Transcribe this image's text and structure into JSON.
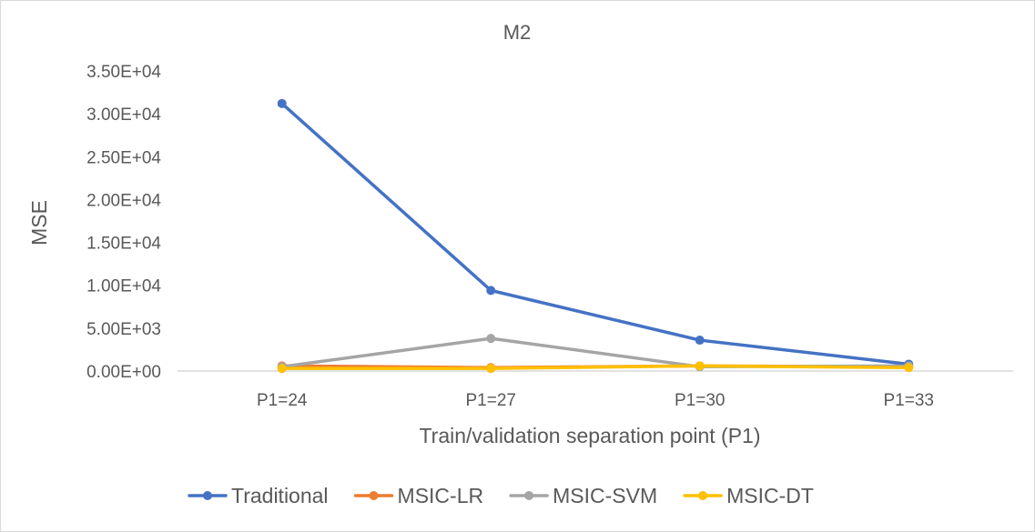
{
  "chart_data": {
    "type": "line",
    "title": "M2",
    "xlabel": "Train/validation separation point (P1)",
    "ylabel": "MSE",
    "categories": [
      "P1=24",
      "P1=27",
      "P1=30",
      "P1=33"
    ],
    "ylim": [
      0,
      35000
    ],
    "ytick_values": [
      0,
      5000,
      10000,
      15000,
      20000,
      25000,
      30000,
      35000
    ],
    "ytick_labels": [
      "0.00E+00",
      "5.00E+03",
      "1.00E+04",
      "1.50E+04",
      "2.00E+04",
      "2.50E+04",
      "3.00E+04",
      "3.50E+04"
    ],
    "grid": false,
    "legend_position": "bottom",
    "series": [
      {
        "name": "Traditional",
        "color": "#4472c4",
        "values": [
          31200,
          9400,
          3600,
          800
        ]
      },
      {
        "name": "MSIC-LR",
        "color": "#ed7d31",
        "values": [
          600,
          400,
          600,
          500
        ]
      },
      {
        "name": "MSIC-SVM",
        "color": "#a5a5a5",
        "values": [
          500,
          3800,
          500,
          600
        ]
      },
      {
        "name": "MSIC-DT",
        "color": "#ffc000",
        "values": [
          300,
          300,
          600,
          400
        ]
      }
    ]
  }
}
